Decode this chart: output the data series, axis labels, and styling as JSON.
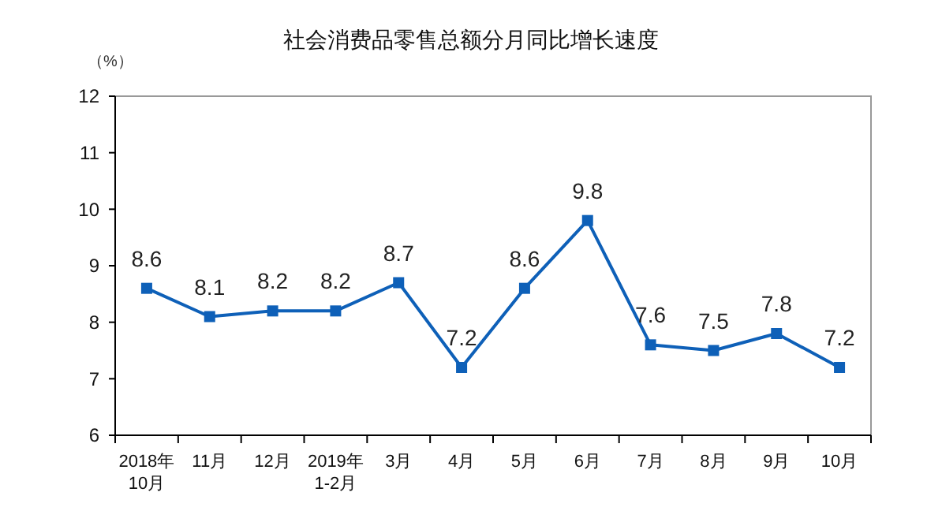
{
  "chart_data": {
    "type": "line",
    "title": "社会消费品零售总额分月同比增长速度",
    "ylabel": "（%）",
    "categories": [
      "2018年\n10月",
      "11月",
      "12月",
      "2019年\n1-2月",
      "3月",
      "4月",
      "5月",
      "6月",
      "7月",
      "8月",
      "9月",
      "10月"
    ],
    "series": [
      {
        "color": "#0e60b8",
        "values": [
          8.6,
          8.1,
          8.2,
          8.2,
          8.7,
          7.2,
          8.6,
          9.8,
          7.6,
          7.5,
          7.8,
          7.2
        ]
      }
    ],
    "ylim": [
      6,
      12
    ],
    "yticks": [
      6,
      7,
      8,
      9,
      10,
      11,
      12
    ],
    "grid": false,
    "marker": "square",
    "line_style": "solid",
    "data_labels": true
  }
}
